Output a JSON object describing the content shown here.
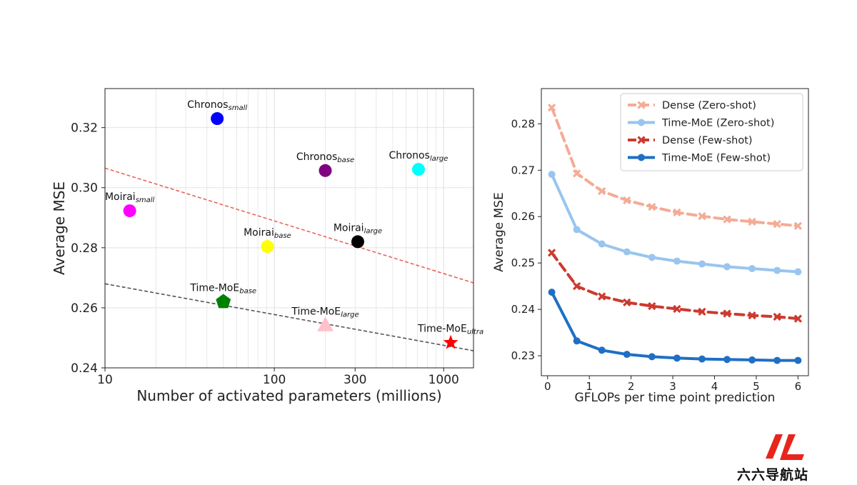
{
  "chart_data": [
    {
      "type": "scatter",
      "xlabel": "Number of activated parameters (millions)",
      "ylabel": "Average MSE",
      "xscale": "log",
      "xlim": [
        10,
        1500
      ],
      "ylim": [
        0.24,
        0.333
      ],
      "xticks": [
        {
          "value": 10,
          "label": "10"
        },
        {
          "value": 100,
          "label": "100"
        },
        {
          "value": 300,
          "label": "300"
        },
        {
          "value": 1000,
          "label": "1000"
        }
      ],
      "yticks": [
        {
          "value": 0.24,
          "label": "0.24"
        },
        {
          "value": 0.26,
          "label": "0.26"
        },
        {
          "value": 0.28,
          "label": "0.28"
        },
        {
          "value": 0.3,
          "label": "0.30"
        },
        {
          "value": 0.32,
          "label": "0.32"
        }
      ],
      "grid": true,
      "points": [
        {
          "name": "Chronos",
          "sub": "small",
          "x": 46,
          "y": 0.323,
          "color": "#0000ff",
          "marker": "circle"
        },
        {
          "name": "Chronos",
          "sub": "base",
          "x": 200,
          "y": 0.3057,
          "color": "#800080",
          "marker": "circle"
        },
        {
          "name": "Chronos",
          "sub": "large",
          "x": 710,
          "y": 0.3061,
          "color": "#00ffff",
          "marker": "circle"
        },
        {
          "name": "Moirai",
          "sub": "small",
          "x": 14,
          "y": 0.2923,
          "color": "#ff00ff",
          "marker": "circle"
        },
        {
          "name": "Moirai",
          "sub": "base",
          "x": 91,
          "y": 0.2804,
          "color": "#ffff00",
          "marker": "circle"
        },
        {
          "name": "Moirai",
          "sub": "large",
          "x": 311,
          "y": 0.282,
          "color": "#000000",
          "marker": "circle"
        },
        {
          "name": "Time-MoE",
          "sub": "base",
          "x": 50,
          "y": 0.262,
          "color": "#008000",
          "marker": "pentagon"
        },
        {
          "name": "Time-MoE",
          "sub": "large",
          "x": 200,
          "y": 0.2542,
          "color": "#ffc0cb",
          "marker": "triangle"
        },
        {
          "name": "Time-MoE",
          "sub": "ultra",
          "x": 1100,
          "y": 0.2484,
          "color": "#ff0000",
          "marker": "star"
        }
      ],
      "trendlines": [
        {
          "color": "#e8665c",
          "x": [
            10,
            1500
          ],
          "y": [
            0.3065,
            0.2683
          ]
        },
        {
          "color": "#555555",
          "x": [
            10,
            1500
          ],
          "y": [
            0.268,
            0.2457
          ]
        }
      ]
    },
    {
      "type": "line",
      "xlabel": "GFLOPs per time point prediction",
      "ylabel": "Average MSE",
      "xlim": [
        -0.15,
        6.25
      ],
      "ylim": [
        0.2257,
        0.2876
      ],
      "xticks": [
        {
          "value": 0,
          "label": "0"
        },
        {
          "value": 1,
          "label": "1"
        },
        {
          "value": 2,
          "label": "2"
        },
        {
          "value": 3,
          "label": "3"
        },
        {
          "value": 4,
          "label": "4"
        },
        {
          "value": 5,
          "label": "5"
        },
        {
          "value": 6,
          "label": "6"
        }
      ],
      "yticks": [
        {
          "value": 0.23,
          "label": "0.23"
        },
        {
          "value": 0.24,
          "label": "0.24"
        },
        {
          "value": 0.25,
          "label": "0.25"
        },
        {
          "value": 0.26,
          "label": "0.26"
        },
        {
          "value": 0.27,
          "label": "0.27"
        },
        {
          "value": 0.28,
          "label": "0.28"
        }
      ],
      "grid": false,
      "legend_position": "top-right",
      "x": [
        0.1,
        0.7,
        1.3,
        1.9,
        2.5,
        3.1,
        3.7,
        4.3,
        4.9,
        5.5,
        6.0
      ],
      "series": [
        {
          "name": "Dense (Zero-shot)",
          "color": "#f4ab95",
          "dashed": true,
          "marker": "x",
          "values": [
            0.2835,
            0.2693,
            0.2655,
            0.2635,
            0.2621,
            0.2609,
            0.2601,
            0.2594,
            0.2589,
            0.2584,
            0.258
          ]
        },
        {
          "name": "Time-MoE (Zero-shot)",
          "color": "#99c5ef",
          "dashed": false,
          "marker": "circle",
          "values": [
            0.2691,
            0.2572,
            0.2541,
            0.2524,
            0.2512,
            0.2504,
            0.2498,
            0.2492,
            0.2488,
            0.2484,
            0.2481
          ]
        },
        {
          "name": "Dense (Few-shot)",
          "color": "#cc3a2e",
          "dashed": true,
          "marker": "x",
          "values": [
            0.2522,
            0.245,
            0.2428,
            0.2415,
            0.2407,
            0.2401,
            0.2395,
            0.2391,
            0.2387,
            0.2384,
            0.238
          ]
        },
        {
          "name": "Time-MoE (Few-shot)",
          "color": "#1f6fc5",
          "dashed": false,
          "marker": "circle",
          "values": [
            0.2437,
            0.2332,
            0.2312,
            0.2303,
            0.2298,
            0.2295,
            0.2293,
            0.2292,
            0.2291,
            0.229,
            0.229
          ]
        }
      ]
    }
  ],
  "watermark": {
    "text": "六六导航站",
    "logo_color": "#e8241c"
  }
}
